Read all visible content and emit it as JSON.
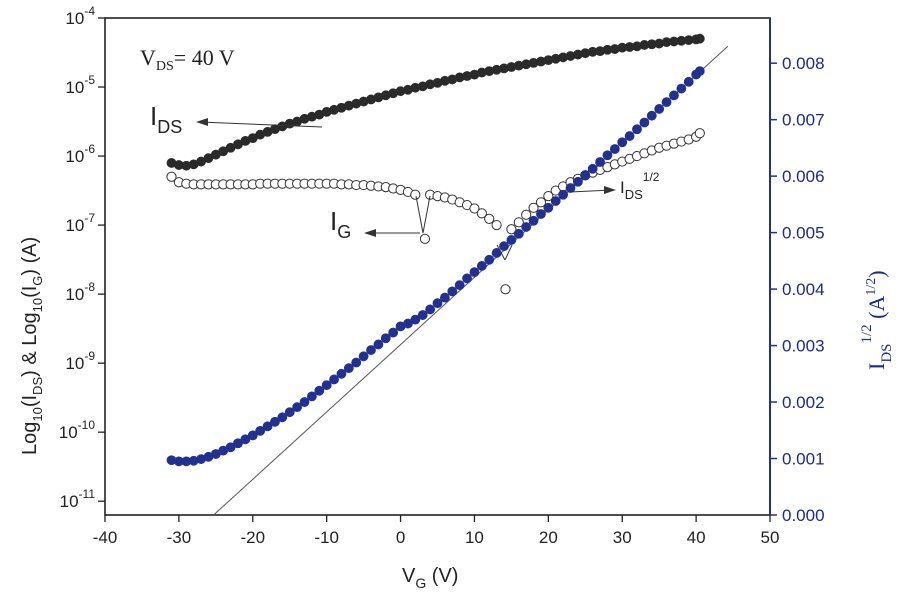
{
  "chart_data": {
    "type": "scatter",
    "xlabel": {
      "main": "V",
      "sub": "G",
      "unit": " (V)"
    },
    "ylabel_left": {
      "parts": [
        "Log",
        "10",
        "(I",
        "DS",
        ") & Log",
        "10",
        "(I",
        "G",
        ")  (A)"
      ]
    },
    "ylabel_right": {
      "main": "I",
      "sub": "DS",
      "sup": "1/2",
      "unit": " (A",
      "unit_sup": "1/2",
      "unit_end": ")"
    },
    "xlim": [
      -40,
      50
    ],
    "ylim_left_log": [
      -11.2,
      -4
    ],
    "ylim_right": [
      0,
      0.0088
    ],
    "x_ticks": [
      -40,
      -30,
      -20,
      -10,
      0,
      10,
      20,
      30,
      40,
      50
    ],
    "x_tick_labels": [
      "-40",
      "-30",
      "-20",
      "-10",
      "0",
      "10",
      "20",
      "30",
      "40",
      "50"
    ],
    "y_left_ticks": [
      {
        "base": "10",
        "exp": "-4",
        "value": -4
      },
      {
        "base": "10",
        "exp": "-5",
        "value": -5
      },
      {
        "base": "10",
        "exp": "-6",
        "value": -6
      },
      {
        "base": "10",
        "exp": "-7",
        "value": -7
      },
      {
        "base": "10",
        "exp": "-8",
        "value": -8
      },
      {
        "base": "10",
        "exp": "-9",
        "value": -9
      },
      {
        "base": "10",
        "exp": "-10",
        "value": -10
      },
      {
        "base": "10",
        "exp": "-11",
        "value": -11
      }
    ],
    "y_right_ticks": [
      0,
      0.001,
      0.002,
      0.003,
      0.004,
      0.005,
      0.006,
      0.007,
      0.008
    ],
    "y_right_tick_labels": [
      "0.000",
      "0.001",
      "0.002",
      "0.003",
      "0.004",
      "0.005",
      "0.006",
      "0.007",
      "0.008"
    ],
    "annotations": {
      "vds": {
        "main": "V",
        "sub": "DS",
        "rest": "= 40 V"
      },
      "ids": {
        "main": "I",
        "sub": "DS"
      },
      "ig": {
        "main": "I",
        "sub": "G"
      },
      "ids_sqrt": {
        "main": "I",
        "sub": "DS",
        "sup": "1/2"
      }
    },
    "fit_line": {
      "x": [
        -25.3,
        44.3
      ],
      "y": [
        0,
        0.0083
      ]
    },
    "series": [
      {
        "key": "ids_log",
        "axis": "left",
        "marker": "filled",
        "color": "#2a2a2a",
        "x": [
          -31,
          -30,
          -29,
          -28,
          -27,
          -26,
          -25,
          -24,
          -23,
          -22,
          -21,
          -20,
          -19,
          -18,
          -17,
          -16,
          -15,
          -14,
          -13,
          -12,
          -11,
          -10,
          -9,
          -8,
          -7,
          -6,
          -5,
          -4,
          -3,
          -2,
          -1,
          0,
          1,
          2,
          3,
          4,
          5,
          6,
          7,
          8,
          9,
          10,
          11,
          12,
          13,
          14,
          15,
          16,
          17,
          18,
          19,
          20,
          21,
          22,
          23,
          24,
          25,
          26,
          27,
          28,
          29,
          30,
          31,
          32,
          33,
          34,
          35,
          36,
          37,
          38,
          39,
          40,
          40.5
        ],
        "y": [
          -6.1,
          -6.13,
          -6.14,
          -6.12,
          -6.08,
          -6.03,
          -5.98,
          -5.93,
          -5.88,
          -5.83,
          -5.78,
          -5.74,
          -5.69,
          -5.65,
          -5.61,
          -5.57,
          -5.53,
          -5.5,
          -5.46,
          -5.43,
          -5.4,
          -5.36,
          -5.33,
          -5.3,
          -5.27,
          -5.24,
          -5.21,
          -5.18,
          -5.15,
          -5.12,
          -5.09,
          -5.06,
          -5.04,
          -5.01,
          -4.99,
          -4.96,
          -4.94,
          -4.91,
          -4.89,
          -4.86,
          -4.84,
          -4.82,
          -4.79,
          -4.77,
          -4.75,
          -4.73,
          -4.71,
          -4.69,
          -4.67,
          -4.65,
          -4.63,
          -4.61,
          -4.59,
          -4.57,
          -4.55,
          -4.53,
          -4.51,
          -4.49,
          -4.48,
          -4.46,
          -4.45,
          -4.43,
          -4.42,
          -4.41,
          -4.39,
          -4.38,
          -4.37,
          -4.35,
          -4.34,
          -4.33,
          -4.32,
          -4.31,
          -4.3
        ]
      },
      {
        "key": "ig_log",
        "axis": "left",
        "marker": "open",
        "color": "#333333",
        "x": [
          -31,
          -30,
          -29,
          -28,
          -27,
          -26,
          -25,
          -24,
          -23,
          -22,
          -21,
          -20,
          -19,
          -18,
          -17,
          -16,
          -15,
          -14,
          -13,
          -12,
          -11,
          -10,
          -9,
          -8,
          -7,
          -6,
          -5,
          -4,
          -3,
          -2,
          -1,
          0,
          1,
          2,
          3.3,
          4,
          5,
          6,
          7,
          8,
          9,
          10,
          11,
          12,
          13,
          14.2,
          15,
          16,
          17,
          18,
          19,
          20,
          21,
          22,
          23,
          24,
          25,
          26,
          27,
          28,
          29,
          30,
          31,
          32,
          33,
          34,
          35,
          36,
          37,
          38,
          39,
          40,
          40.5
        ],
        "y": [
          -6.3,
          -6.38,
          -6.4,
          -6.41,
          -6.41,
          -6.41,
          -6.41,
          -6.41,
          -6.41,
          -6.41,
          -6.41,
          -6.41,
          -6.4,
          -6.4,
          -6.4,
          -6.4,
          -6.4,
          -6.4,
          -6.4,
          -6.4,
          -6.4,
          -6.4,
          -6.4,
          -6.41,
          -6.41,
          -6.42,
          -6.42,
          -6.43,
          -6.44,
          -6.45,
          -6.47,
          -6.49,
          -6.52,
          -6.56,
          -7.2,
          -6.56,
          -6.58,
          -6.6,
          -6.63,
          -6.67,
          -6.71,
          -6.76,
          -6.83,
          -6.91,
          -7.0,
          -7.93,
          -7.06,
          -6.96,
          -6.85,
          -6.75,
          -6.67,
          -6.58,
          -6.5,
          -6.44,
          -6.38,
          -6.33,
          -6.28,
          -6.24,
          -6.2,
          -6.16,
          -6.12,
          -6.08,
          -6.04,
          -6.0,
          -5.96,
          -5.92,
          -5.88,
          -5.85,
          -5.82,
          -5.79,
          -5.76,
          -5.72,
          -5.67
        ]
      },
      {
        "key": "ids_sqrt",
        "axis": "right",
        "marker": "filled",
        "color": "#22318f",
        "x": [
          -31,
          -30,
          -29,
          -28,
          -27,
          -26,
          -25,
          -24,
          -23,
          -22,
          -21,
          -20,
          -19,
          -18,
          -17,
          -16,
          -15,
          -14,
          -13,
          -12,
          -11,
          -10,
          -9,
          -8,
          -7,
          -6,
          -5,
          -4,
          -3,
          -2,
          -1,
          0,
          1,
          2,
          3,
          4,
          5,
          6,
          7,
          8,
          9,
          10,
          11,
          12,
          13,
          14,
          15,
          16,
          17,
          18,
          19,
          20,
          21,
          22,
          23,
          24,
          25,
          26,
          27,
          28,
          29,
          30,
          31,
          32,
          33,
          34,
          35,
          36,
          37,
          38,
          39,
          40,
          40.5
        ],
        "y": [
          0.00097,
          0.00095,
          0.00095,
          0.00096,
          0.00099,
          0.00103,
          0.00108,
          0.00114,
          0.0012,
          0.00127,
          0.00134,
          0.00141,
          0.00149,
          0.00157,
          0.00165,
          0.00173,
          0.00182,
          0.00191,
          0.002,
          0.0021,
          0.0022,
          0.0023,
          0.0024,
          0.0025,
          0.0026,
          0.0027,
          0.00281,
          0.00292,
          0.00302,
          0.00313,
          0.00323,
          0.00334,
          0.00339,
          0.00346,
          0.00354,
          0.00364,
          0.00375,
          0.00385,
          0.00396,
          0.00407,
          0.00419,
          0.0043,
          0.00441,
          0.00452,
          0.00464,
          0.00476,
          0.00487,
          0.00498,
          0.0051,
          0.00521,
          0.00533,
          0.00544,
          0.00556,
          0.00567,
          0.00579,
          0.0059,
          0.00602,
          0.00613,
          0.00625,
          0.00637,
          0.00648,
          0.0066,
          0.00671,
          0.00683,
          0.00695,
          0.00707,
          0.00719,
          0.00731,
          0.00743,
          0.00755,
          0.00767,
          0.0078,
          0.00786
        ]
      }
    ]
  }
}
